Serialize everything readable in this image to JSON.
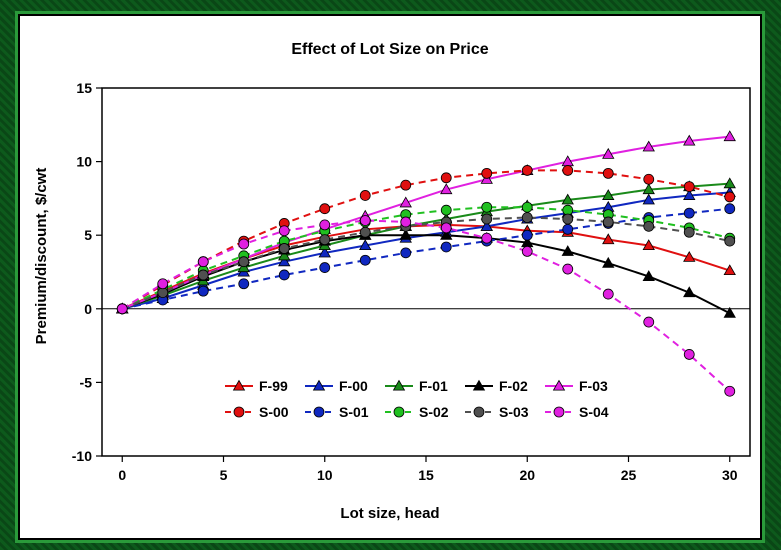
{
  "chart_data": {
    "type": "line",
    "title": "Effect of Lot Size on Price",
    "xlabel": "Lot size, head",
    "ylabel": "Premium/discount, $/cwt",
    "xlim": [
      -1,
      31
    ],
    "ylim": [
      -10,
      15
    ],
    "xticks": [
      0,
      5,
      10,
      15,
      20,
      25,
      30
    ],
    "yticks": [
      -10,
      -5,
      0,
      5,
      10,
      15
    ],
    "x": [
      0,
      2,
      4,
      6,
      8,
      10,
      12,
      14,
      16,
      18,
      20,
      22,
      24,
      26,
      28,
      30
    ],
    "legend_placement": "bottom-center",
    "series": [
      {
        "name": "F-99",
        "color": "#e01010",
        "marker": "triangle",
        "dash": false,
        "values": [
          0,
          1.2,
          2.4,
          3.4,
          4.3,
          4.9,
          5.4,
          5.6,
          5.7,
          5.6,
          5.3,
          5.2,
          4.7,
          4.3,
          3.5,
          2.6
        ]
      },
      {
        "name": "F-00",
        "color": "#1028c0",
        "marker": "triangle",
        "dash": false,
        "values": [
          0,
          0.7,
          1.6,
          2.5,
          3.2,
          3.8,
          4.3,
          4.8,
          5.2,
          5.6,
          6.1,
          6.5,
          6.9,
          7.4,
          7.7,
          7.9
        ]
      },
      {
        "name": "F-01",
        "color": "#1a8a1a",
        "marker": "triangle",
        "dash": false,
        "values": [
          0,
          0.9,
          1.9,
          2.8,
          3.6,
          4.3,
          5.0,
          5.6,
          6.1,
          6.6,
          7.0,
          7.4,
          7.7,
          8.1,
          8.3,
          8.5
        ]
      },
      {
        "name": "F-02",
        "color": "#000000",
        "marker": "triangle",
        "dash": false,
        "values": [
          0,
          1.0,
          2.2,
          3.2,
          4.0,
          4.6,
          5.0,
          5.0,
          5.0,
          4.8,
          4.5,
          3.9,
          3.1,
          2.2,
          1.1,
          -0.3
        ]
      },
      {
        "name": "F-03",
        "color": "#e020e0",
        "marker": "triangle",
        "dash": false,
        "values": [
          0,
          1.1,
          2.3,
          3.4,
          4.5,
          5.4,
          6.3,
          7.2,
          8.1,
          8.8,
          9.4,
          10.0,
          10.5,
          11.0,
          11.4,
          11.7
        ]
      },
      {
        "name": "S-00",
        "color": "#e01010",
        "marker": "circle",
        "dash": true,
        "values": [
          0,
          1.6,
          3.2,
          4.6,
          5.8,
          6.8,
          7.7,
          8.4,
          8.9,
          9.2,
          9.4,
          9.4,
          9.2,
          8.8,
          8.3,
          7.6
        ]
      },
      {
        "name": "S-01",
        "color": "#1028c0",
        "marker": "circle",
        "dash": true,
        "values": [
          0,
          0.6,
          1.2,
          1.7,
          2.3,
          2.8,
          3.3,
          3.8,
          4.2,
          4.6,
          5.0,
          5.4,
          5.8,
          6.2,
          6.5,
          6.8
        ]
      },
      {
        "name": "S-02",
        "color": "#20c020",
        "marker": "circle",
        "dash": true,
        "values": [
          0,
          1.3,
          2.6,
          3.6,
          4.6,
          5.3,
          5.9,
          6.4,
          6.7,
          6.9,
          6.9,
          6.7,
          6.4,
          6.0,
          5.5,
          4.8
        ]
      },
      {
        "name": "S-03",
        "color": "#505050",
        "marker": "circle",
        "dash": true,
        "values": [
          0,
          1.1,
          2.3,
          3.2,
          4.1,
          4.7,
          5.2,
          5.6,
          5.9,
          6.1,
          6.2,
          6.1,
          5.9,
          5.6,
          5.2,
          4.6
        ]
      },
      {
        "name": "S-04",
        "color": "#e020e0",
        "marker": "circle",
        "dash": true,
        "values": [
          0,
          1.7,
          3.2,
          4.4,
          5.3,
          5.7,
          6.0,
          5.9,
          5.5,
          4.8,
          3.9,
          2.7,
          1.0,
          -0.9,
          -3.1,
          -5.6
        ]
      }
    ]
  }
}
